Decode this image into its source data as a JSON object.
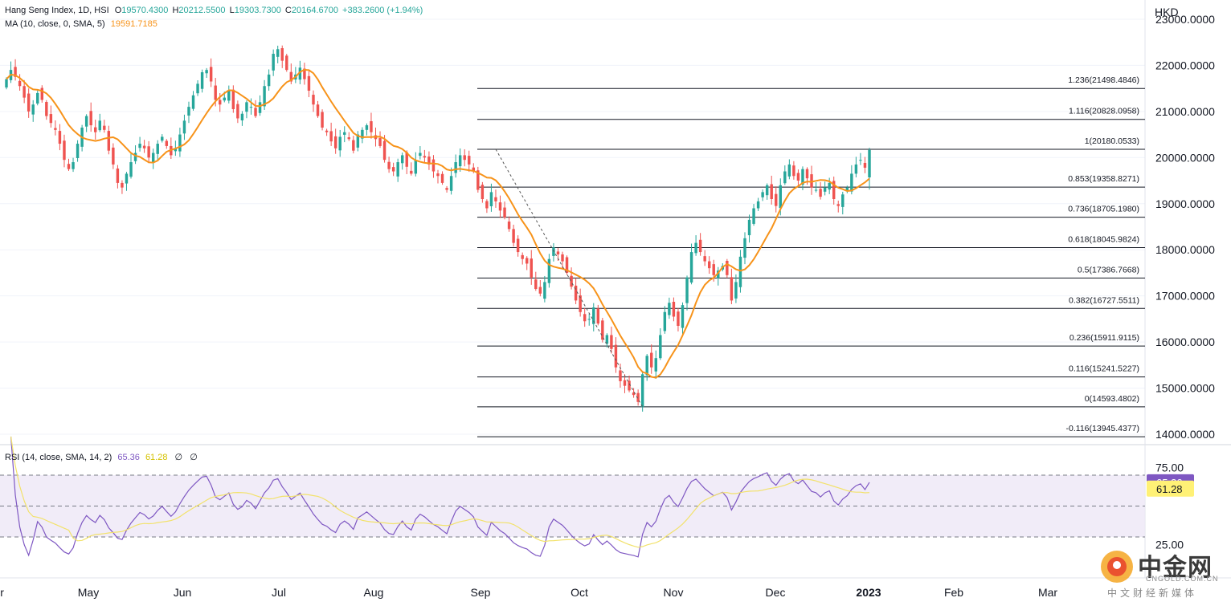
{
  "legend": {
    "symbol": "Hang Seng Index, 1D, HSI",
    "open_label": "O",
    "open": "19570.4300",
    "high_label": "H",
    "high": "20212.5500",
    "low_label": "L",
    "low": "19303.7300",
    "close_label": "C",
    "close": "20164.6700",
    "change": "+383.2600 (+1.94%)",
    "ma_name": "MA (10, close, 0, SMA, 5)",
    "ma_value": "19591.7185",
    "rsi_name": "RSI (14, close, SMA, 14, 2)",
    "rsi_value": "65.36",
    "rsi_ma_value": "61.28",
    "rsi_extra1": "∅",
    "rsi_extra2": "∅"
  },
  "currency": "HKD",
  "colors": {
    "up": "#26a69a",
    "down": "#ef5350",
    "ma": "#f7931a",
    "rsi": "#7e57c2",
    "rsi_ma": "#f2e26b",
    "rsi_band": "#ede7f6",
    "fib_line": "#131722",
    "grid": "#f0f3fa"
  },
  "badges": {
    "rsi": "65.36",
    "rsi_ma": "61.28"
  },
  "watermark": {
    "brand": "中金网",
    "domain": "CNGOLD.COM.CN",
    "tagline": "中文财经新媒体"
  },
  "chart_data": {
    "type": "candlestick",
    "title": "Hang Seng Index, 1D, HSI",
    "price_axis": {
      "unit": "HKD",
      "ticks": [
        14000,
        15000,
        16000,
        17000,
        18000,
        19000,
        20000,
        21000,
        22000,
        23000
      ],
      "tick_labels": [
        "14000.0000",
        "15000.0000",
        "16000.0000",
        "17000.0000",
        "18000.0000",
        "19000.0000",
        "20000.0000",
        "21000.0000",
        "22000.0000",
        "23000.0000"
      ]
    },
    "time_axis": {
      "labels": [
        "Apr",
        "May",
        "Jun",
        "Jul",
        "Aug",
        "Sep",
        "Oct",
        "Nov",
        "Dec",
        "2023",
        "Feb",
        "Mar"
      ],
      "bold": [
        "2023"
      ]
    },
    "fibonacci": [
      {
        "label": "1.236(21498.4846)",
        "level": 1.236,
        "price": 21498.4846
      },
      {
        "label": "1.116(20828.0958)",
        "level": 1.116,
        "price": 20828.0958
      },
      {
        "label": "1(20180.0533)",
        "level": 1,
        "price": 20180.0533
      },
      {
        "label": "0.853(19358.8271)",
        "level": 0.853,
        "price": 19358.8271
      },
      {
        "label": "0.736(18705.1980)",
        "level": 0.736,
        "price": 18705.198
      },
      {
        "label": "0.618(18045.9824)",
        "level": 0.618,
        "price": 18045.9824
      },
      {
        "label": "0.5(17386.7668)",
        "level": 0.5,
        "price": 17386.7668
      },
      {
        "label": "0.382(16727.5511)",
        "level": 0.382,
        "price": 16727.5511
      },
      {
        "label": "0.236(15911.9115)",
        "level": 0.236,
        "price": 15911.9115
      },
      {
        "label": "0.116(15241.5227)",
        "level": 0.116,
        "price": 15241.5227
      },
      {
        "label": "0(14593.4802)",
        "level": 0,
        "price": 14593.4802
      },
      {
        "label": "-0.116(13945.4377)",
        "level": -0.116,
        "price": 13945.4377
      }
    ],
    "closes": [
      21700,
      21900,
      21750,
      21550,
      21300,
      21000,
      21150,
      21400,
      21250,
      20900,
      20750,
      20600,
      20300,
      19950,
      19750,
      19900,
      20300,
      20650,
      20900,
      20700,
      20550,
      20800,
      20600,
      20150,
      19850,
      19450,
      19350,
      19650,
      19900,
      20100,
      20300,
      20200,
      20000,
      20100,
      20300,
      20450,
      20250,
      20050,
      20200,
      20500,
      20800,
      21100,
      21350,
      21600,
      21850,
      21900,
      21650,
      21250,
      21150,
      21300,
      21450,
      21050,
      20850,
      20950,
      21200,
      21100,
      20900,
      21200,
      21550,
      21800,
      22250,
      22350,
      22100,
      21900,
      21650,
      21800,
      21950,
      21700,
      21450,
      21150,
      20900,
      20650,
      20550,
      20350,
      20200,
      20450,
      20550,
      20400,
      20150,
      20500,
      20600,
      20700,
      20550,
      20400,
      20250,
      19950,
      19750,
      19700,
      19900,
      20050,
      19800,
      19650,
      19950,
      20100,
      20000,
      19850,
      19700,
      19600,
      19450,
      19300,
      19600,
      19900,
      20050,
      19950,
      19850,
      19700,
      19300,
      19100,
      18900,
      19250,
      19050,
      18850,
      18700,
      18450,
      18150,
      17950,
      17800,
      17700,
      17400,
      17150,
      17050,
      17300,
      17800,
      18050,
      17900,
      17750,
      17500,
      17200,
      16900,
      16650,
      16450,
      16500,
      16750,
      16400,
      16050,
      16150,
      15850,
      15450,
      15150,
      15050,
      14950,
      14850,
      14700,
      15300,
      15700,
      15450,
      15650,
      16150,
      16650,
      16850,
      16550,
      16350,
      16800,
      17400,
      17950,
      18150,
      17950,
      17750,
      17600,
      17450,
      17550,
      17650,
      17450,
      16900,
      17300,
      17850,
      18250,
      18650,
      18900,
      19050,
      19250,
      19400,
      19100,
      18950,
      19400,
      19700,
      19850,
      19600,
      19500,
      19750,
      19550,
      19350,
      19300,
      19150,
      19350,
      19450,
      19100,
      18950,
      19200,
      19350,
      19650,
      19850,
      19950,
      19780,
      20165
    ],
    "rsi": {
      "y_ticks": [
        25,
        75
      ],
      "band": [
        30,
        70
      ],
      "midline": 50,
      "last_value": 65.36,
      "last_ma_value": 61.28
    },
    "ma_period": 10,
    "ma_last": 19591.7185,
    "last": {
      "open": 19570.43,
      "high": 20212.55,
      "low": 19303.73,
      "close": 20164.67
    }
  }
}
